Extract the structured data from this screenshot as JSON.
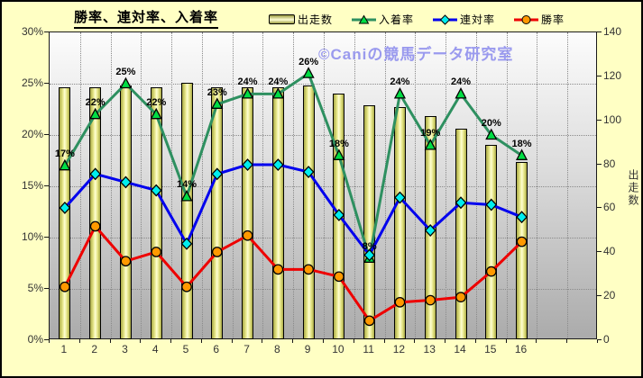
{
  "title": "勝率、連対率、入着率",
  "watermark": "©Caniの競馬データ研究室",
  "colors": {
    "background": "#ffffc4",
    "watermark": "#9a9aee",
    "plot_gradient_top": "#fcfcfc",
    "plot_gradient_bottom": "#ababab",
    "bar_fill": "#e9e98a",
    "entry_line": "#2e9060",
    "entry_marker": "#00dd44",
    "quinella_line": "#0000ee",
    "quinella_marker": "#00eeee",
    "win_line": "#ee0000",
    "win_marker": "#ff9900"
  },
  "chart_data": {
    "type": "combo_bar_line",
    "title": "勝率、連対率、入着率",
    "categories": [
      "1",
      "2",
      "3",
      "4",
      "5",
      "6",
      "7",
      "8",
      "9",
      "10",
      "11",
      "12",
      "13",
      "14",
      "15",
      "16"
    ],
    "x_slots_total": 18,
    "grid": "dotted horizontal at left-axis 5% steps, dotted vertical at every category boundary",
    "legend_position": "top",
    "left_axis": {
      "min": 0,
      "max": 30,
      "tick_labels": [
        "30%",
        "25%",
        "20%",
        "15%",
        "10%",
        "5%",
        "0%"
      ]
    },
    "right_axis": {
      "min": 0,
      "max": 140,
      "tick_labels": [
        "140",
        "120",
        "100",
        "80",
        "60",
        "40",
        "20",
        "0"
      ],
      "label": "出走数"
    },
    "series": [
      {
        "name": "出走数",
        "type": "bar",
        "axis": "right",
        "color": "#e9e98a",
        "values": [
          115,
          115,
          116,
          115,
          117,
          115,
          115,
          115,
          116,
          112,
          107,
          106,
          102,
          96,
          89,
          81
        ]
      },
      {
        "name": "入着率",
        "type": "line",
        "marker": "triangle",
        "axis": "left",
        "color": "#2e9060",
        "marker_color": "#00dd44",
        "values": [
          17,
          22,
          25,
          22,
          14,
          23,
          24,
          24,
          26,
          18,
          8,
          24,
          19,
          24,
          20,
          18
        ],
        "data_labels": [
          "17%",
          "22%",
          "25%",
          "22%",
          "14%",
          "23%",
          "24%",
          "24%",
          "26%",
          "18%",
          "8%",
          "24%",
          "19%",
          "24%",
          "20%",
          "18%"
        ]
      },
      {
        "name": "連対率",
        "type": "line",
        "marker": "diamond",
        "axis": "left",
        "color": "#0000ee",
        "marker_color": "#00eeee",
        "values": [
          12.9,
          16.2,
          15.4,
          14.6,
          9.4,
          16.2,
          17.1,
          17.1,
          16.4,
          12.2,
          8.3,
          13.9,
          10.7,
          13.4,
          13.2,
          12.0
        ]
      },
      {
        "name": "勝率",
        "type": "line",
        "marker": "circle",
        "axis": "left",
        "color": "#ee0000",
        "marker_color": "#ff9900",
        "values": [
          5.2,
          11.1,
          7.7,
          8.6,
          5.2,
          8.6,
          10.2,
          6.9,
          6.9,
          6.2,
          1.9,
          3.7,
          3.9,
          4.2,
          6.7,
          9.6
        ]
      }
    ]
  }
}
